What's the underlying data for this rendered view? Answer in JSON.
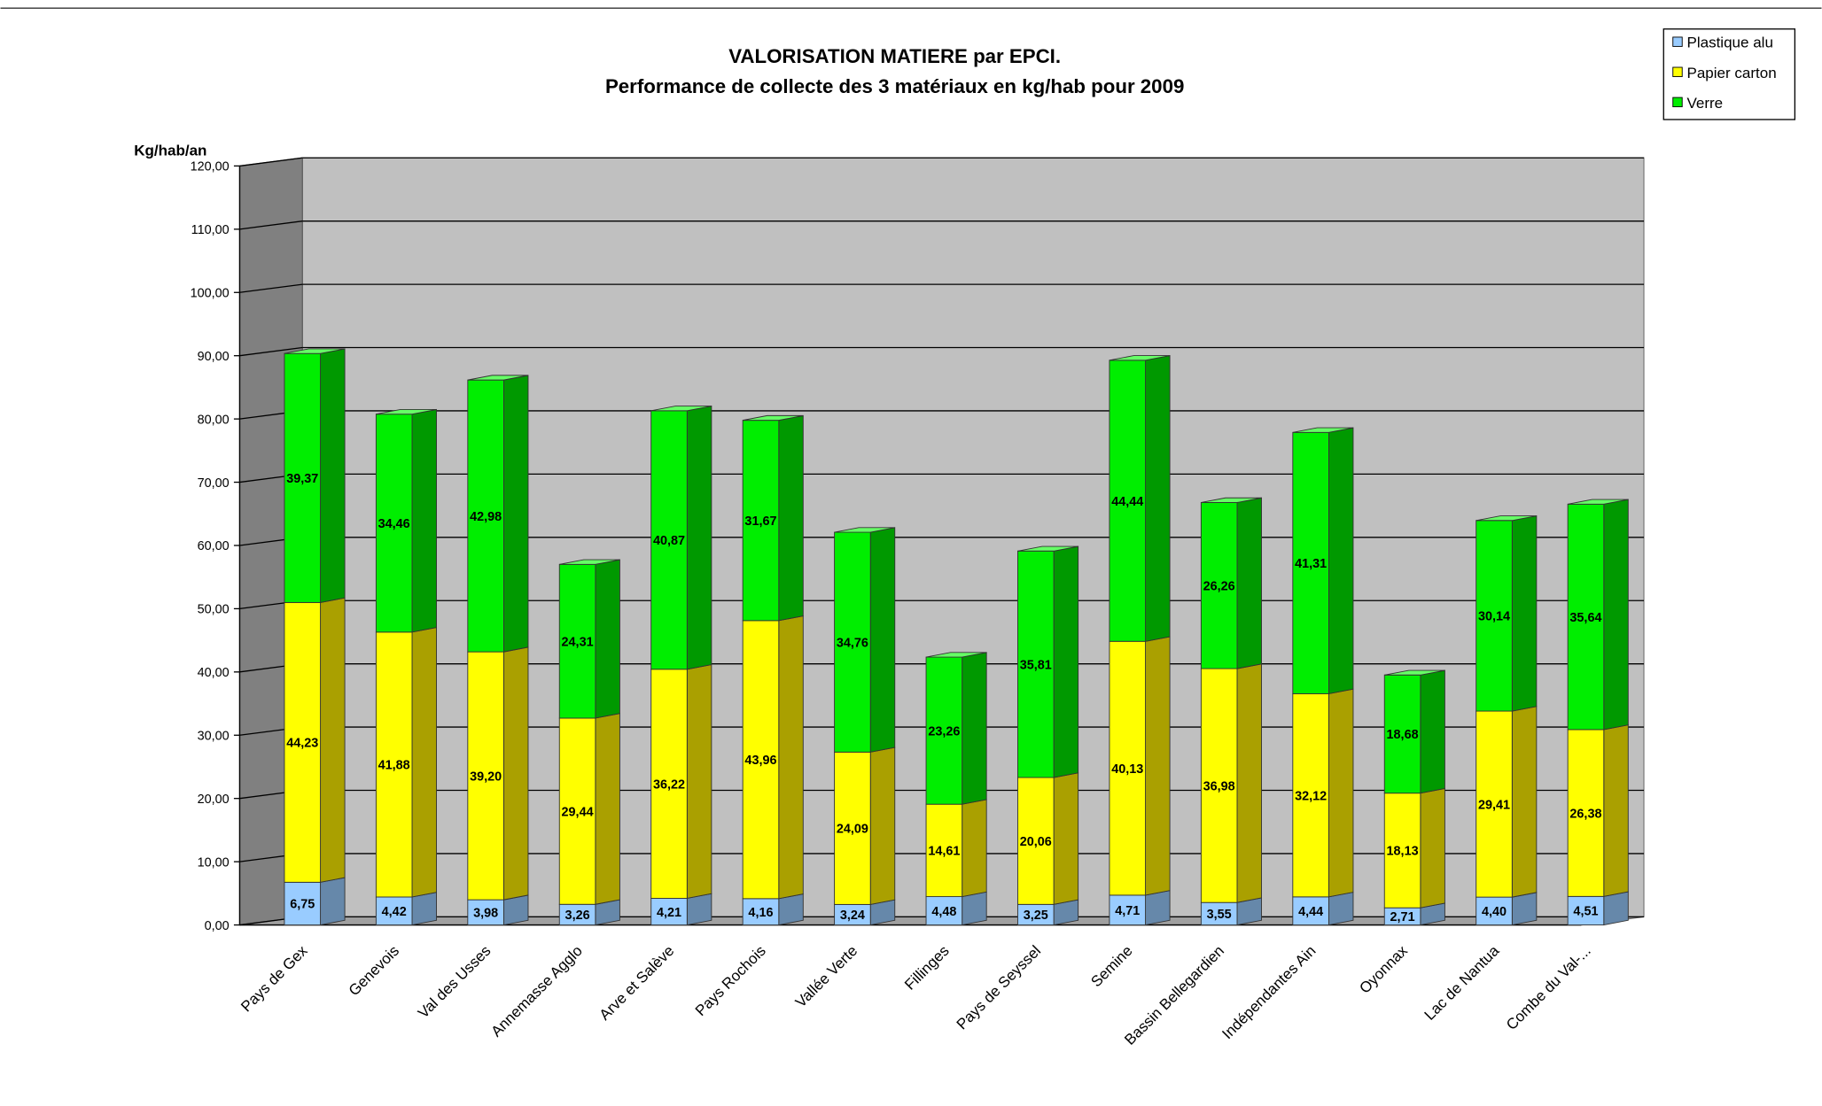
{
  "chart_data": {
    "type": "bar3d-stacked",
    "title": "VALORISATION MATIERE par EPCI.",
    "subtitle": "Performance de collecte des 3 matériaux en kg/hab pour 2009",
    "y_label": "Kg/hab/an",
    "categories": [
      "Pays de Gex",
      "Genevois",
      "Val des Usses",
      "Annemasse Agglo",
      "Arve et Salève",
      "Pays Rochois",
      "Vallée Verte",
      "Fillinges",
      "Pays de Seyssel",
      "Semine",
      "Bassin Bellegardien",
      "Indépendantes Ain",
      "Oyonnax",
      "Lac de Nantua",
      "Combe du Val-..."
    ],
    "series": [
      {
        "name": "Plastique alu",
        "color": "#99ccff",
        "values": [
          6.75,
          4.42,
          3.98,
          3.26,
          4.21,
          4.16,
          3.24,
          4.48,
          3.25,
          4.71,
          3.55,
          4.44,
          2.71,
          4.4,
          4.51
        ],
        "value_labels": [
          "6,75",
          "4,42",
          "3,98",
          "3,26",
          "4,21",
          "4,16",
          "3,24",
          "4,48",
          "3,25",
          "4,71",
          "3,55",
          "4,44",
          "2,71",
          "4,40",
          "4,51"
        ]
      },
      {
        "name": "Papier carton",
        "color": "#ffff00",
        "values": [
          44.23,
          41.88,
          39.2,
          29.44,
          36.22,
          43.96,
          24.09,
          14.61,
          20.06,
          40.13,
          36.98,
          32.12,
          18.13,
          29.41,
          26.38
        ],
        "value_labels": [
          "44,23",
          "41,88",
          "39,20",
          "29,44",
          "36,22",
          "43,96",
          "24,09",
          "14,61",
          "20,06",
          "40,13",
          "36,98",
          "32,12",
          "18,13",
          "29,41",
          "26,38"
        ]
      },
      {
        "name": "Verre",
        "color": "#00ee00",
        "values": [
          39.37,
          34.46,
          42.98,
          24.31,
          40.87,
          31.67,
          34.76,
          23.26,
          35.81,
          44.44,
          26.26,
          41.31,
          18.68,
          30.14,
          35.64
        ],
        "value_labels": [
          "39,37",
          "34,46",
          "42,98",
          "24,31",
          "40,87",
          "31,67",
          "34,76",
          "23,26",
          "35,81",
          "44,44",
          "26,26",
          "41,31",
          "18,68",
          "30,14",
          "35,64"
        ]
      }
    ],
    "ylim": [
      0,
      120
    ],
    "yticks": [
      {
        "value": 0,
        "label": "0,00"
      },
      {
        "value": 10,
        "label": "10,00"
      },
      {
        "value": 20,
        "label": "20,00"
      },
      {
        "value": 30,
        "label": "30,00"
      },
      {
        "value": 40,
        "label": "40,00"
      },
      {
        "value": 50,
        "label": "50,00"
      },
      {
        "value": 60,
        "label": "60,00"
      },
      {
        "value": 70,
        "label": "70,00"
      },
      {
        "value": 80,
        "label": "80,00"
      },
      {
        "value": 90,
        "label": "90,00"
      },
      {
        "value": 100,
        "label": "100,00"
      },
      {
        "value": 110,
        "label": "110,00"
      },
      {
        "value": 120,
        "label": "120,00"
      }
    ],
    "grid": true,
    "legend": "top-right"
  }
}
